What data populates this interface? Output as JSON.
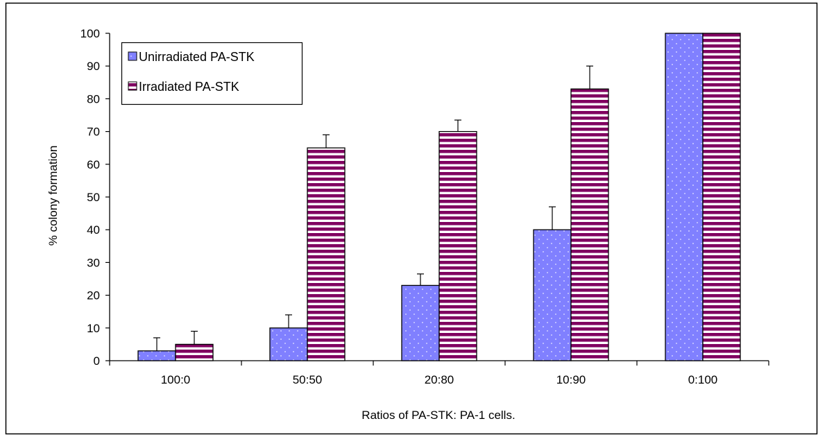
{
  "chart_data": {
    "type": "bar",
    "title": "",
    "xlabel": "Ratios of PA-STK: PA-1 cells.",
    "ylabel": "% colony formation",
    "ylim": [
      0,
      100
    ],
    "yticks": [
      "0",
      "10",
      "20",
      "30",
      "40",
      "50",
      "60",
      "70",
      "80",
      "90",
      "100"
    ],
    "categories": [
      "100:0",
      "50:50",
      "20:80",
      "10:90",
      "0:100"
    ],
    "series": [
      {
        "name": "Unirradiated PA-STK",
        "values": [
          3,
          10,
          23,
          40,
          100
        ],
        "error": [
          4,
          4,
          3.5,
          7,
          0
        ],
        "color": "#8080ff",
        "pattern": "dotted"
      },
      {
        "name": "Irradiated PA-STK",
        "values": [
          5,
          65,
          70,
          83,
          100
        ],
        "error": [
          4,
          4,
          3.5,
          7,
          0
        ],
        "color": "#800060",
        "pattern": "horizontal-stripes"
      }
    ],
    "legend_position": "top-left",
    "grid": false,
    "error_bars": true
  }
}
